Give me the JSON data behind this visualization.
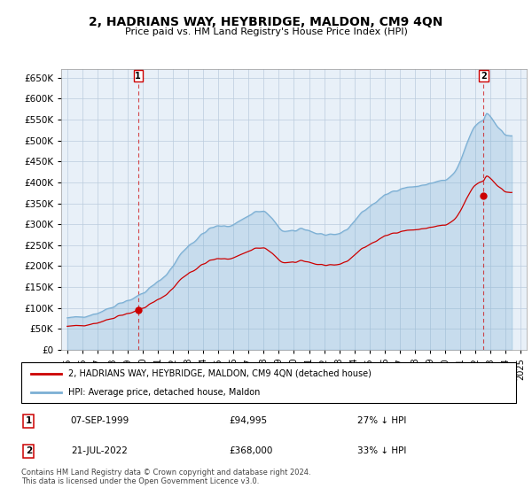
{
  "title": "2, HADRIANS WAY, HEYBRIDGE, MALDON, CM9 4QN",
  "subtitle": "Price paid vs. HM Land Registry's House Price Index (HPI)",
  "sale_color": "#cc0000",
  "hpi_color": "#7bafd4",
  "hpi_fill_color": "#ddeeff",
  "sale_dates": [
    1999.69,
    2022.55
  ],
  "sale_prices": [
    94995,
    368000
  ],
  "sale_labels": [
    "1",
    "2"
  ],
  "vline_dates": [
    1999.69,
    2022.55
  ],
  "annotation_1_date": "07-SEP-1999",
  "annotation_1_price": "£94,995",
  "annotation_1_hpi": "27% ↓ HPI",
  "annotation_2_date": "21-JUL-2022",
  "annotation_2_price": "£368,000",
  "annotation_2_hpi": "33% ↓ HPI",
  "legend_sale_label": "2, HADRIANS WAY, HEYBRIDGE, MALDON, CM9 4QN (detached house)",
  "legend_hpi_label": "HPI: Average price, detached house, Maldon",
  "footer": "Contains HM Land Registry data © Crown copyright and database right 2024.\nThis data is licensed under the Open Government Licence v3.0.",
  "ylim": [
    0,
    670000
  ],
  "yticks": [
    0,
    50000,
    100000,
    150000,
    200000,
    250000,
    300000,
    350000,
    400000,
    450000,
    500000,
    550000,
    600000,
    650000
  ],
  "xlim_start": 1994.6,
  "xlim_end": 2025.4,
  "sale_hpi_at_date": [
    129500,
    550000
  ],
  "background_color": "#ffffff"
}
